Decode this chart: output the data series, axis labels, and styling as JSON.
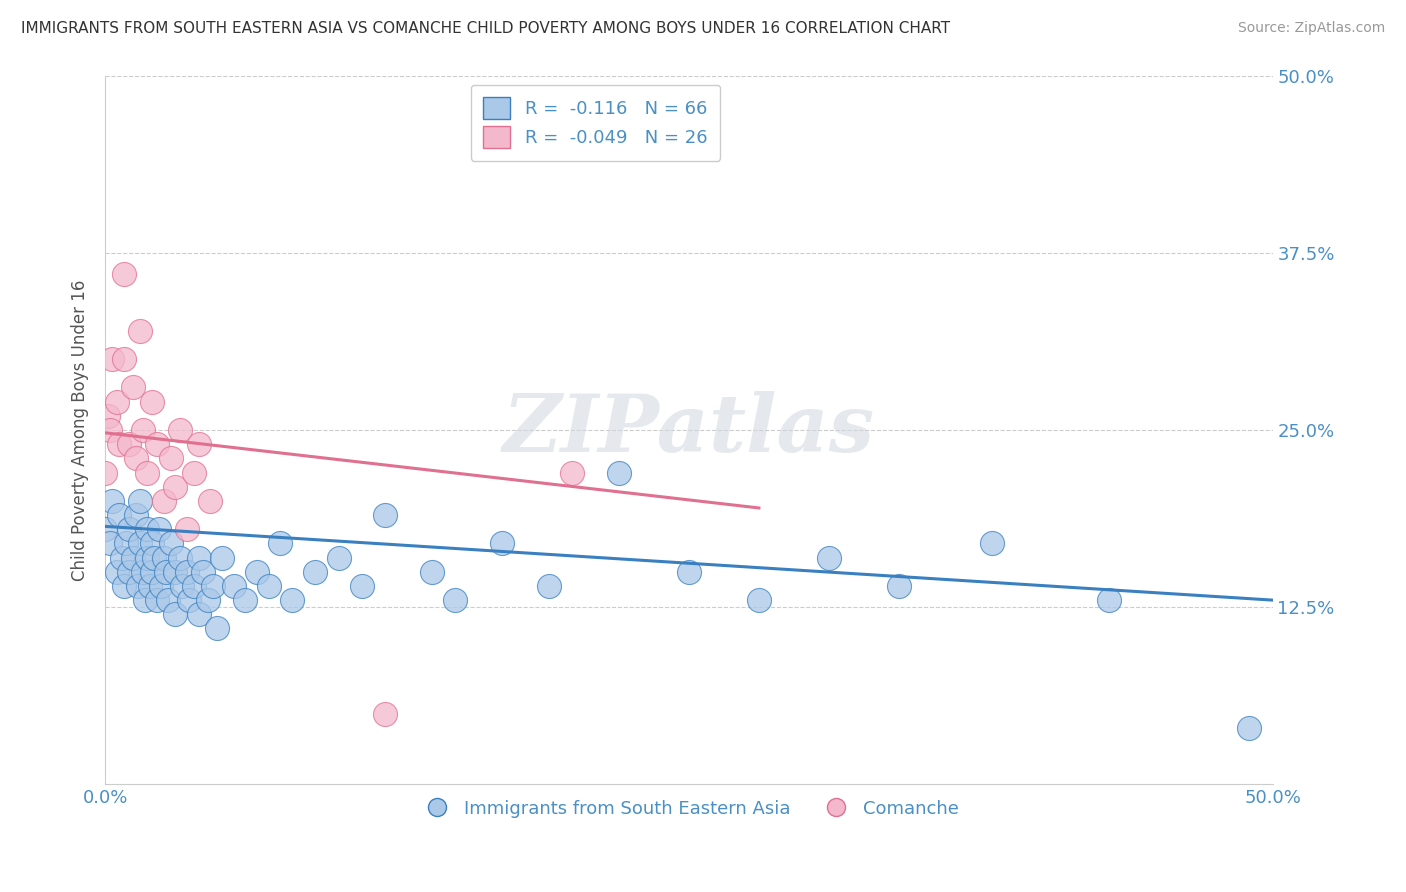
{
  "title": "IMMIGRANTS FROM SOUTH EASTERN ASIA VS COMANCHE CHILD POVERTY AMONG BOYS UNDER 16 CORRELATION CHART",
  "source": "Source: ZipAtlas.com",
  "ylabel": "Child Poverty Among Boys Under 16",
  "legend_label1": "Immigrants from South Eastern Asia",
  "legend_label2": "Comanche",
  "R1": -0.116,
  "N1": 66,
  "R2": -0.049,
  "N2": 26,
  "blue_color": "#aac8e8",
  "pink_color": "#f4b8cc",
  "blue_line_color": "#3a80c0",
  "pink_line_color": "#e07090",
  "axis_label_color": "#4a90c4",
  "watermark": "ZIPatlas",
  "xlim": [
    0.0,
    0.5
  ],
  "ylim": [
    0.0,
    0.5
  ],
  "blue_scatter_x": [
    0.0,
    0.002,
    0.003,
    0.005,
    0.006,
    0.007,
    0.008,
    0.009,
    0.01,
    0.01,
    0.012,
    0.013,
    0.014,
    0.015,
    0.015,
    0.016,
    0.017,
    0.018,
    0.018,
    0.019,
    0.02,
    0.02,
    0.021,
    0.022,
    0.023,
    0.024,
    0.025,
    0.026,
    0.027,
    0.028,
    0.03,
    0.03,
    0.032,
    0.033,
    0.035,
    0.036,
    0.038,
    0.04,
    0.04,
    0.042,
    0.044,
    0.046,
    0.048,
    0.05,
    0.055,
    0.06,
    0.065,
    0.07,
    0.075,
    0.08,
    0.09,
    0.1,
    0.11,
    0.12,
    0.14,
    0.15,
    0.17,
    0.19,
    0.22,
    0.25,
    0.28,
    0.31,
    0.34,
    0.38,
    0.43,
    0.49
  ],
  "blue_scatter_y": [
    0.18,
    0.17,
    0.2,
    0.15,
    0.19,
    0.16,
    0.14,
    0.17,
    0.18,
    0.15,
    0.16,
    0.19,
    0.14,
    0.17,
    0.2,
    0.15,
    0.13,
    0.18,
    0.16,
    0.14,
    0.17,
    0.15,
    0.16,
    0.13,
    0.18,
    0.14,
    0.16,
    0.15,
    0.13,
    0.17,
    0.15,
    0.12,
    0.16,
    0.14,
    0.15,
    0.13,
    0.14,
    0.16,
    0.12,
    0.15,
    0.13,
    0.14,
    0.11,
    0.16,
    0.14,
    0.13,
    0.15,
    0.14,
    0.17,
    0.13,
    0.15,
    0.16,
    0.14,
    0.19,
    0.15,
    0.13,
    0.17,
    0.14,
    0.22,
    0.15,
    0.13,
    0.16,
    0.14,
    0.17,
    0.13,
    0.04
  ],
  "pink_scatter_x": [
    0.0,
    0.001,
    0.002,
    0.003,
    0.005,
    0.006,
    0.008,
    0.008,
    0.01,
    0.012,
    0.013,
    0.015,
    0.016,
    0.018,
    0.02,
    0.022,
    0.025,
    0.028,
    0.03,
    0.032,
    0.035,
    0.038,
    0.04,
    0.045,
    0.12,
    0.2
  ],
  "pink_scatter_y": [
    0.22,
    0.26,
    0.25,
    0.3,
    0.27,
    0.24,
    0.36,
    0.3,
    0.24,
    0.28,
    0.23,
    0.32,
    0.25,
    0.22,
    0.27,
    0.24,
    0.2,
    0.23,
    0.21,
    0.25,
    0.18,
    0.22,
    0.24,
    0.2,
    0.05,
    0.22
  ],
  "blue_trend_x": [
    0.0,
    0.5
  ],
  "blue_trend_y": [
    0.182,
    0.13
  ],
  "pink_trend_x": [
    0.0,
    0.28
  ],
  "pink_trend_y": [
    0.248,
    0.195
  ]
}
